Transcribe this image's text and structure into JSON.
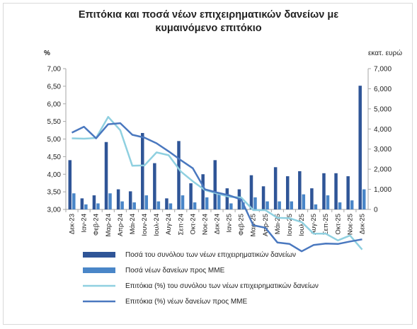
{
  "chart_data": {
    "type": "bar+line",
    "title_lines": [
      "Επιτόκια και ποσά νέων επιχειρηματικών δανείων με",
      "κυμαινόμενο επιτόκιο"
    ],
    "left_axis_unit": "%",
    "right_axis_unit": "εκατ. ευρώ",
    "left_ylim": [
      3.0,
      7.0
    ],
    "right_ylim": [
      0,
      7000
    ],
    "left_ticks": [
      "3,00",
      "3,50",
      "4,00",
      "4,50",
      "5,00",
      "5,50",
      "6,00",
      "6,50",
      "7,00"
    ],
    "right_ticks": [
      "0",
      "1,000",
      "2,000",
      "3,000",
      "4,000",
      "5,000",
      "6,000",
      "7,000"
    ],
    "categories": [
      "Δεκ-23",
      "Ιαν-24",
      "Φεβ-24",
      "Μαρ-24",
      "Απρ-24",
      "Μάι-24",
      "Ιουν-24",
      "Ιουλ-24",
      "Αυγ-24",
      "Σεπ-24",
      "Οκτ-24",
      "Νοε-24",
      "Δεκ-24",
      "Ιαν-25",
      "Φεβ-25",
      "Μαρ-25",
      "Απρ-25",
      "Μάι-25",
      "Ιουν-25",
      "Ιουλ-25",
      "Αυγ-25",
      "Σεπ-25",
      "Οκτ-25",
      "Νοε-25",
      "Δεκ-25"
    ],
    "series": [
      {
        "name": "Ποσά του συνόλου των νέων επιχειρηματικών δανείων",
        "type": "bar",
        "axis": "right",
        "color": "#2f5597",
        "values": [
          2450,
          550,
          700,
          3350,
          1000,
          900,
          3800,
          2300,
          550,
          3400,
          1300,
          1750,
          2450,
          1050,
          1000,
          1700,
          1150,
          2100,
          1650,
          1900,
          1050,
          1800,
          1800,
          1650,
          6150
        ]
      },
      {
        "name": "Ποσά νέων δανείων προς ΜΜΕ",
        "type": "bar",
        "axis": "right",
        "color": "#4a86c8",
        "values": [
          800,
          250,
          300,
          800,
          400,
          350,
          700,
          400,
          300,
          700,
          350,
          600,
          800,
          300,
          350,
          600,
          400,
          400,
          400,
          750,
          250,
          700,
          350,
          450,
          1000
        ]
      },
      {
        "name": "Επιτόκια (%) του συνόλου των νέων επιχειρηματικών δανείων",
        "type": "line",
        "axis": "left",
        "color": "#8fd0e0",
        "values": [
          5.02,
          5.01,
          5.03,
          5.63,
          5.25,
          4.24,
          4.25,
          4.62,
          4.54,
          4.08,
          3.8,
          3.55,
          3.45,
          3.36,
          3.34,
          2.98,
          2.98,
          2.76,
          2.75,
          2.64,
          2.31,
          2.31,
          2.12,
          2.26,
          1.86
        ]
      },
      {
        "name": "Επιτόκια (%) νέων δανείων προς ΜΜΕ",
        "type": "line",
        "axis": "left",
        "color": "#4a78bf",
        "values": [
          5.18,
          5.35,
          5.02,
          5.42,
          5.45,
          5.12,
          5.04,
          4.88,
          4.65,
          4.4,
          4.17,
          3.57,
          3.48,
          3.4,
          3.28,
          2.55,
          2.48,
          2.06,
          2.02,
          1.81,
          1.99,
          2.03,
          2.02,
          2.09,
          2.15
        ]
      }
    ],
    "legend_position": "bottom",
    "grid": false
  }
}
